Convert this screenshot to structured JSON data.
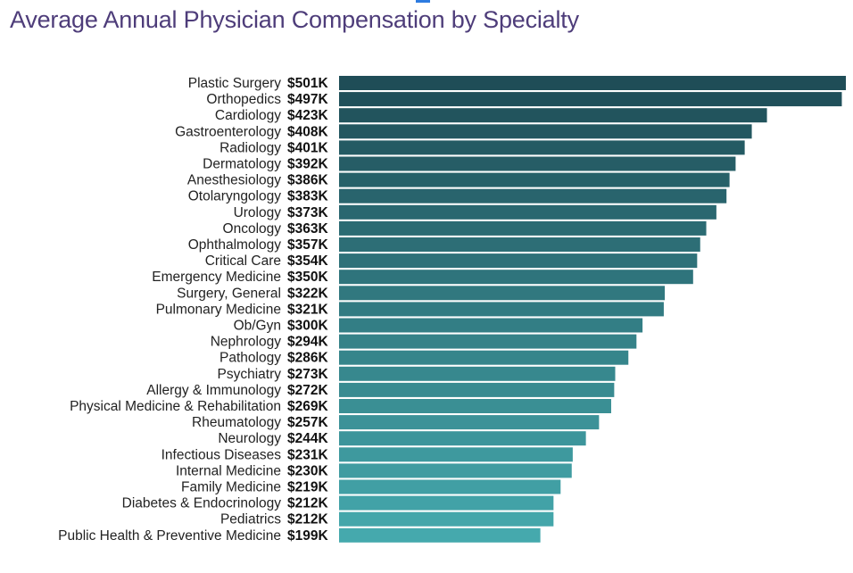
{
  "chart_data": {
    "type": "bar",
    "orientation": "horizontal",
    "title": "Average Annual Physician Compensation by Specialty",
    "categories": [
      "Plastic Surgery",
      "Orthopedics",
      "Cardiology",
      "Gastroenterology",
      "Radiology",
      "Dermatology",
      "Anesthesiology",
      "Otolaryngology",
      "Urology",
      "Oncology",
      "Ophthalmology",
      "Critical Care",
      "Emergency Medicine",
      "Surgery, General",
      "Pulmonary Medicine",
      "Ob/Gyn",
      "Nephrology",
      "Pathology",
      "Psychiatry",
      "Allergy & Immunology",
      "Physical Medicine & Rehabilitation",
      "Rheumatology",
      "Neurology",
      "Infectious Diseases",
      "Internal Medicine",
      "Family Medicine",
      "Diabetes & Endocrinology",
      "Pediatrics",
      "Public Health & Preventive Medicine"
    ],
    "values": [
      501,
      497,
      423,
      408,
      401,
      392,
      386,
      383,
      373,
      363,
      357,
      354,
      350,
      322,
      321,
      300,
      294,
      286,
      273,
      272,
      269,
      257,
      244,
      231,
      230,
      219,
      212,
      212,
      199
    ],
    "value_labels": [
      "$501K",
      "$497K",
      "$423K",
      "$408K",
      "$401K",
      "$392K",
      "$386K",
      "$383K",
      "$373K",
      "$363K",
      "$357K",
      "$354K",
      "$350K",
      "$322K",
      "$321K",
      "$300K",
      "$294K",
      "$286K",
      "$273K",
      "$272K",
      "$269K",
      "$257K",
      "$244K",
      "$231K",
      "$230K",
      "$219K",
      "$212K",
      "$212K",
      "$199K"
    ],
    "xlim": [
      0,
      501
    ],
    "grid": false,
    "legend": "none",
    "colors": {
      "darkest": "#1f4d57",
      "lightest": "#45a9ad"
    }
  },
  "accent_color": "#2d7be0",
  "title_color": "#4e3d7a"
}
